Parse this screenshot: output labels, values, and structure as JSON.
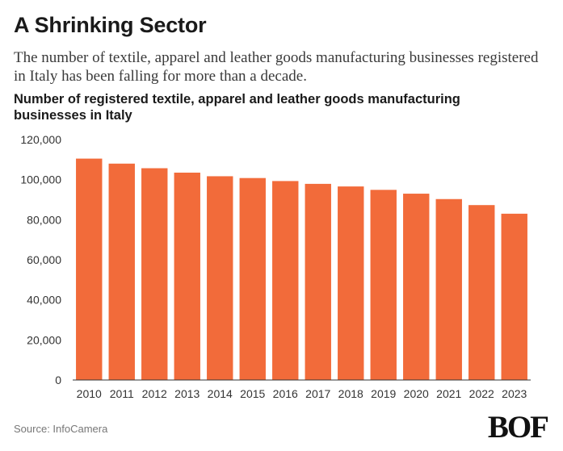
{
  "header": {
    "title": "A Shrinking Sector",
    "subtitle": "The number of textile, apparel and leather goods manufacturing businesses registered in Italy has been falling for more than a decade."
  },
  "footer": {
    "source": "Source: InfoCamera",
    "logo_text": "BOF"
  },
  "colors": {
    "bar": "#F26B3A",
    "axis": "#333333"
  },
  "chart_data": {
    "type": "bar",
    "title": "Number of registered textile, apparel and leather goods manufacturing businesses in Italy",
    "xlabel": "",
    "ylabel": "",
    "categories": [
      "2010",
      "2011",
      "2012",
      "2013",
      "2014",
      "2015",
      "2016",
      "2017",
      "2018",
      "2019",
      "2020",
      "2021",
      "2022",
      "2023"
    ],
    "values": [
      110500,
      108000,
      105700,
      103500,
      101700,
      100800,
      99300,
      97900,
      96600,
      94900,
      93000,
      90300,
      87300,
      83000
    ],
    "ylim": [
      0,
      120000
    ],
    "yticks": [
      "0",
      "20,000",
      "40,000",
      "60,000",
      "80,000",
      "100,000",
      "120,000"
    ],
    "grid": false,
    "legend": "none"
  }
}
